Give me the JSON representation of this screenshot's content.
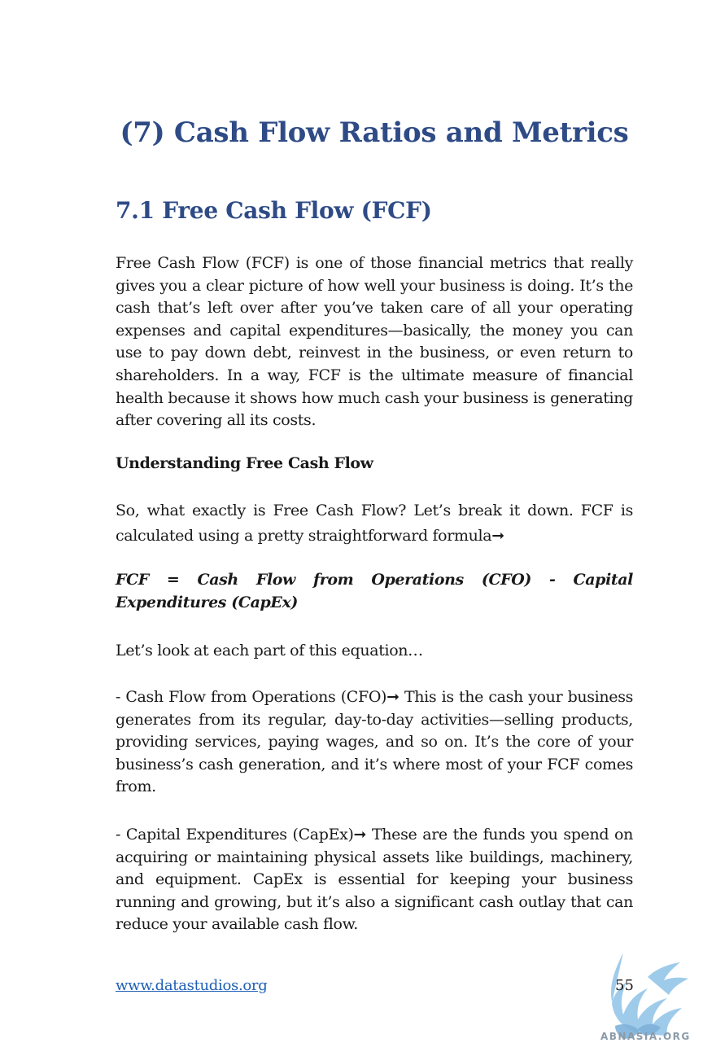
{
  "chapter_title": "(7) Cash Flow Ratios and Metrics",
  "section_title": "7.1 Free Cash Flow (FCF)",
  "paragraphs": {
    "intro": "Free Cash Flow (FCF) is one of those financial metrics that really gives you a clear picture of how well your business is doing. It’s the cash that’s left over after you’ve taken care of all your operating expenses and capital expenditures—basically, the money you can use to pay down debt, reinvest in the business, or even return to shareholders. In a way, FCF is the ultimate measure of financial health because it shows how much cash your business is generating after covering all its costs.",
    "subheading": "Understanding Free Cash Flow",
    "breakdown": "So, what exactly is Free Cash Flow? Let’s break it down. FCF is calculated using a pretty straightforward formula➞",
    "formula": "FCF = Cash Flow from Operations (CFO) - Capital Expenditures (CapEx)",
    "look": "Let’s look at each part of this equation…",
    "cfo": "- Cash Flow from Operations (CFO)➞ This is the cash your business generates from its regular, day-to-day activities—selling products, providing services, paying wages, and so on. It’s the core of your business’s cash generation, and it’s where most of your FCF comes from.",
    "capex": "- Capital Expenditures (CapEx)➞ These are the funds you spend on acquiring or maintaining physical assets like buildings, machinery, and equipment. CapEx is essential for keeping your business running and growing, but it’s also a significant cash outlay that can reduce your available cash flow."
  },
  "footer": {
    "link": "www.datastudios.org",
    "page_number": "55"
  },
  "watermark": {
    "text": "ABNASIA.ORG",
    "icon": "griffin-logo-icon"
  }
}
